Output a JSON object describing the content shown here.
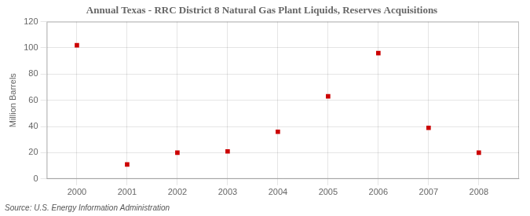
{
  "chart_data": {
    "type": "scatter",
    "title": "Annual Texas - RRC District 8 Natural Gas Plant Liquids, Reserves Acquisitions",
    "ylabel": "Million Barrels",
    "annotations": [
      "Source: U.S. Energy Information Administration"
    ],
    "x": [
      2000,
      2001,
      2002,
      2003,
      2004,
      2005,
      2006,
      2007,
      2008
    ],
    "values": [
      102,
      11,
      20,
      21,
      36,
      63,
      96,
      39,
      20
    ],
    "color": "#cc0000",
    "marker": "square",
    "xlim": [
      1999.4,
      2008.8
    ],
    "ylim": [
      0,
      120
    ],
    "xticks": [
      2000,
      2001,
      2002,
      2003,
      2004,
      2005,
      2006,
      2007,
      2008
    ],
    "yticks": [
      0,
      20,
      40,
      60,
      80,
      100,
      120
    ],
    "grid": true
  }
}
